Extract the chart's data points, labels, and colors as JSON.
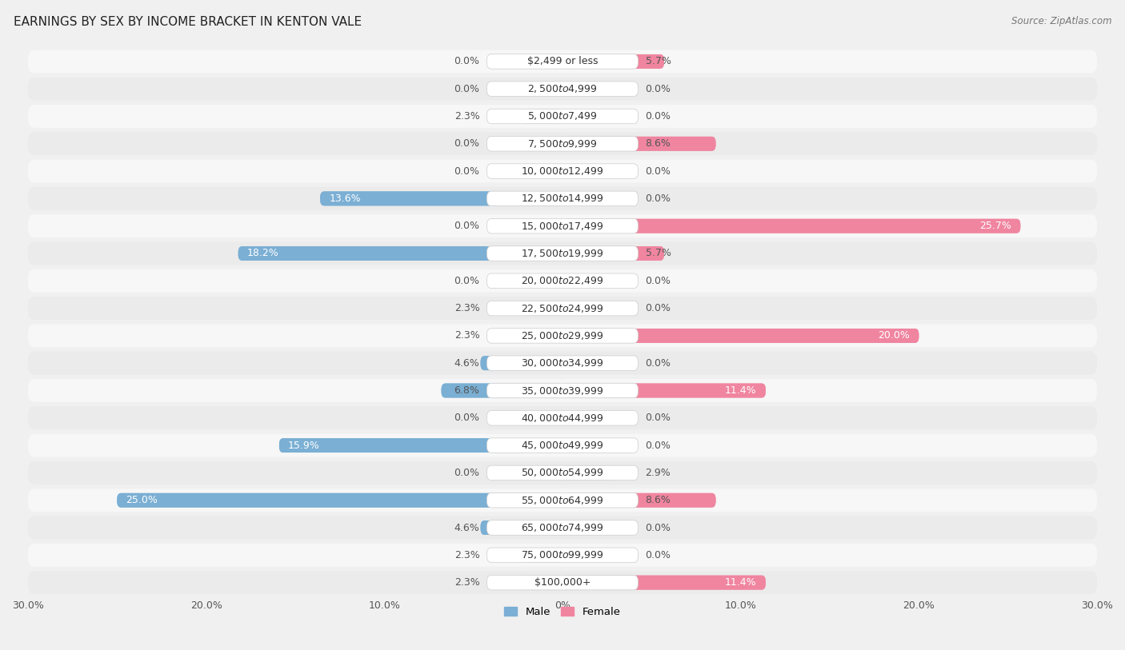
{
  "title": "EARNINGS BY SEX BY INCOME BRACKET IN KENTON VALE",
  "source": "Source: ZipAtlas.com",
  "categories": [
    "$2,499 or less",
    "$2,500 to $4,999",
    "$5,000 to $7,499",
    "$7,500 to $9,999",
    "$10,000 to $12,499",
    "$12,500 to $14,999",
    "$15,000 to $17,499",
    "$17,500 to $19,999",
    "$20,000 to $22,499",
    "$22,500 to $24,999",
    "$25,000 to $29,999",
    "$30,000 to $34,999",
    "$35,000 to $39,999",
    "$40,000 to $44,999",
    "$45,000 to $49,999",
    "$50,000 to $54,999",
    "$55,000 to $64,999",
    "$65,000 to $74,999",
    "$75,000 to $99,999",
    "$100,000+"
  ],
  "male_values": [
    0.0,
    0.0,
    2.3,
    0.0,
    0.0,
    13.6,
    0.0,
    18.2,
    0.0,
    2.3,
    2.3,
    4.6,
    6.8,
    0.0,
    15.9,
    0.0,
    25.0,
    4.6,
    2.3,
    2.3
  ],
  "female_values": [
    5.7,
    0.0,
    0.0,
    8.6,
    0.0,
    0.0,
    25.7,
    5.7,
    0.0,
    0.0,
    20.0,
    0.0,
    11.4,
    0.0,
    0.0,
    2.9,
    8.6,
    0.0,
    0.0,
    11.4
  ],
  "male_color": "#7bafd4",
  "female_color": "#f085a0",
  "male_color_light": "#aecde3",
  "female_color_light": "#f4b8c6",
  "male_label": "Male",
  "female_label": "Female",
  "axis_max": 30.0,
  "row_color_odd": "#ebebeb",
  "row_color_even": "#f7f7f7",
  "background_color": "#f0f0f0",
  "label_fontsize": 9,
  "title_fontsize": 11,
  "source_fontsize": 8.5,
  "tick_fontsize": 9,
  "category_fontsize": 9,
  "tick_positions": [
    -30,
    -20,
    -10,
    0,
    10,
    20,
    30
  ],
  "tick_labels": [
    "30.0%",
    "20.0%",
    "10.0%",
    "0%",
    "10.0%",
    "20.0%",
    "30.0%"
  ]
}
